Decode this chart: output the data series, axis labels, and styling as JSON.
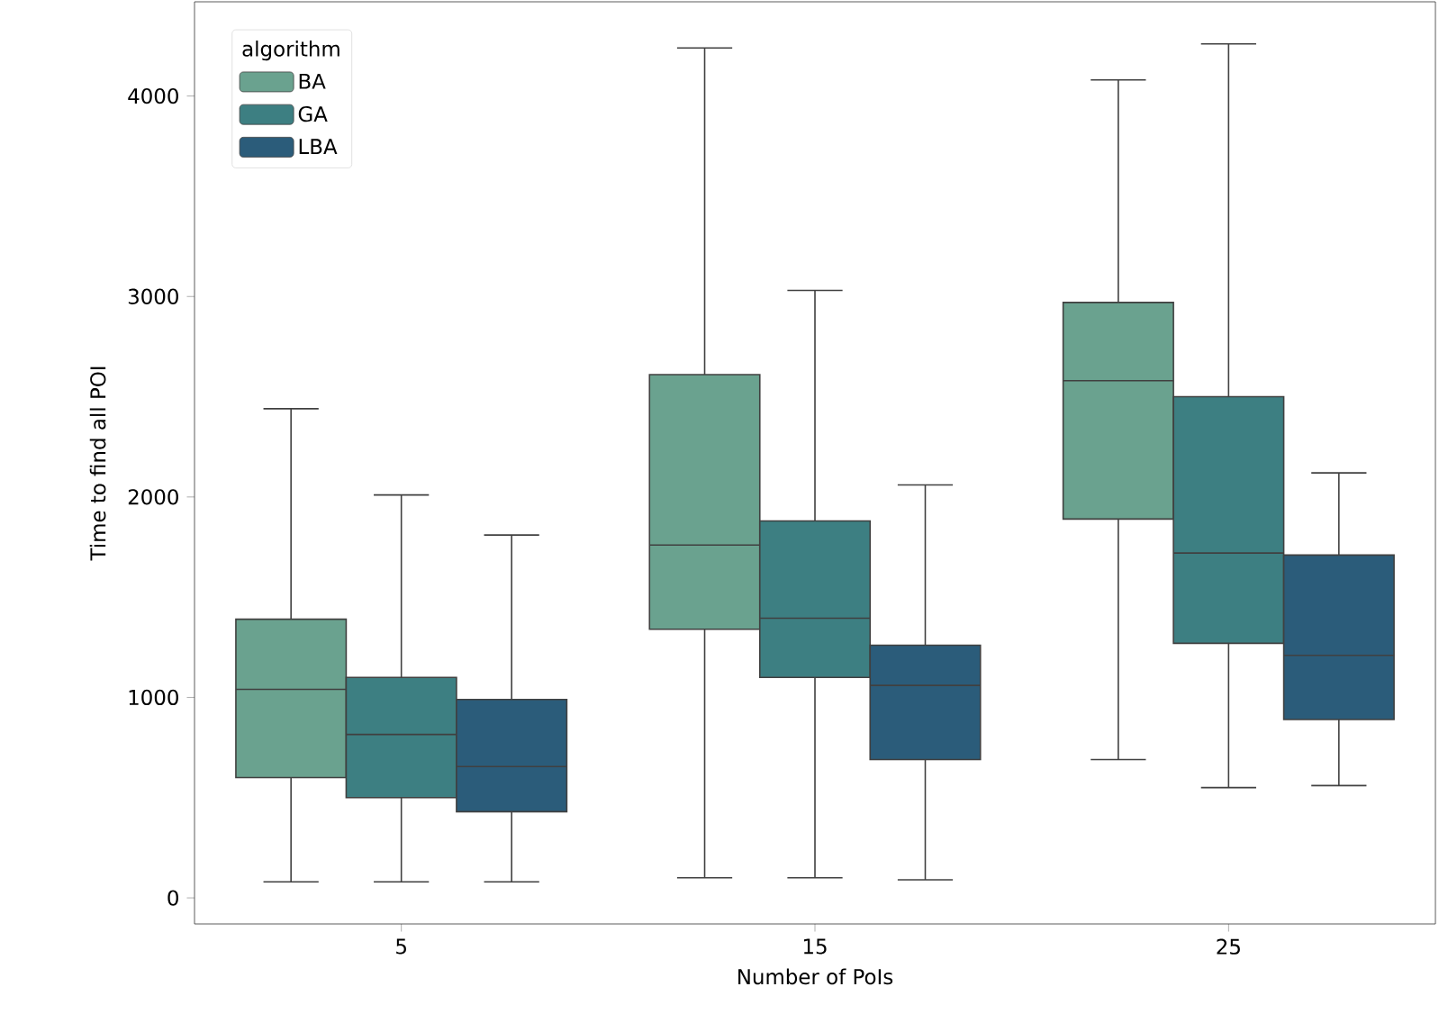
{
  "chart_data": {
    "type": "box",
    "xlabel": "Number of PoIs",
    "ylabel": "Time to find all POI",
    "legend_title": "algorithm",
    "legend": "top left",
    "categories": [
      "5",
      "15",
      "25"
    ],
    "ylim": [
      -130,
      4470
    ],
    "yticks": [
      0,
      1000,
      2000,
      3000,
      4000
    ],
    "series": [
      {
        "name": "BA",
        "color": "#6aa28f",
        "boxes": [
          {
            "low": 80,
            "q1": 600,
            "median": 1040,
            "q3": 1390,
            "high": 2440
          },
          {
            "low": 100,
            "q1": 1340,
            "median": 1760,
            "q3": 2610,
            "high": 4240
          },
          {
            "low": 690,
            "q1": 1890,
            "median": 2580,
            "q3": 2970,
            "high": 4080
          }
        ]
      },
      {
        "name": "GA",
        "color": "#3d7f82",
        "boxes": [
          {
            "low": 80,
            "q1": 500,
            "median": 815,
            "q3": 1100,
            "high": 2010
          },
          {
            "low": 100,
            "q1": 1100,
            "median": 1395,
            "q3": 1880,
            "high": 3030
          },
          {
            "low": 550,
            "q1": 1270,
            "median": 1720,
            "q3": 2500,
            "high": 4260
          }
        ]
      },
      {
        "name": "LBA",
        "color": "#2b5c7a",
        "boxes": [
          {
            "low": 80,
            "q1": 430,
            "median": 655,
            "q3": 990,
            "high": 1810
          },
          {
            "low": 90,
            "q1": 690,
            "median": 1060,
            "q3": 1260,
            "high": 2060
          },
          {
            "low": 560,
            "q1": 890,
            "median": 1210,
            "q3": 1710,
            "high": 2120
          }
        ]
      }
    ]
  }
}
